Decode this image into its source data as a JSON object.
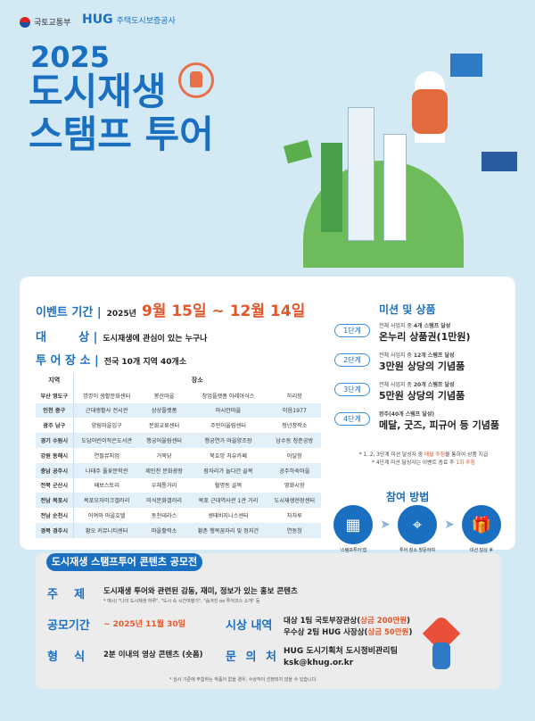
{
  "header": {
    "org1": "국토교통부",
    "org2_brand": "HUG",
    "org2": "주택도시보증공사",
    "year": "2025",
    "title_line1": "도시재생",
    "title_line2": "스탬프 투어"
  },
  "info": {
    "period_label": "이벤트 기간 |",
    "period_year": "2025년",
    "period": "9월 15일 ~ 12월 14일",
    "target_label": "대        상 |",
    "target": "도시재생에 관심이 있는 누구나",
    "place_label": "투 어 장 소 |",
    "place": "전국 10개 지역 40개소"
  },
  "table": {
    "headers": [
      "지역",
      "장소"
    ],
    "rows": [
      [
        "부산 영도구",
        "깡깡이 생활문화센터",
        "봉산마을",
        "창업플랫폼 아레아식스",
        "하리항"
      ],
      [
        "인천 중구",
        "근대생활사 전시관",
        "상상플랫폼",
        "마시안마을",
        "이음1977"
      ],
      [
        "광주 남구",
        "양림마을입구",
        "문화교류센터",
        "주민어울림센터",
        "청년창작소"
      ],
      [
        "경기 수원시",
        "도담어린이작은도서관",
        "행궁어울림센터",
        "행궁연가 마을양조장",
        "남수동 청춘공방"
      ],
      [
        "강원 동해시",
        "연필뮤지엄",
        "거북당",
        "묵호앙 치유카페",
        "어달항"
      ],
      [
        "충남 공주시",
        "나태주 풀꽃문학관",
        "제민천 문화광장",
        "잠자리가 놀다간 골목",
        "공주하숙마을"
      ],
      [
        "전북 군산시",
        "째보스토리",
        "우체통거리",
        "월명동 골목",
        "영화시장"
      ],
      [
        "전남 목포시",
        "목포모자이크갤러리",
        "미식문화갤러리",
        "목포 근대역사관 1관 거리",
        "도시재생현장센터"
      ],
      [
        "전남 순천시",
        "어여와 마을호텔",
        "동천테라스",
        "생태비지니스센터",
        "차차루"
      ],
      [
        "경북 경주시",
        "황오 커뮤니티센터",
        "마을활력소",
        "황촌 행복꿈자리 및 정지간",
        "연동창"
      ]
    ]
  },
  "missions": {
    "title": "미션 및 상품",
    "steps": [
      {
        "label": "1단계",
        "cond_pre": "전체 사업지 중 ",
        "cond_bold": "4개 스탬프 달성",
        "prize": "온누리 상품권(1만원)"
      },
      {
        "label": "2단계",
        "cond_pre": "전체 사업지 중 ",
        "cond_bold": "12개 스탬프 달성",
        "prize": "3만원 상당의 기념품"
      },
      {
        "label": "3단계",
        "cond_pre": "전체 사업지 중 ",
        "cond_bold": "20개 스탬프 달성",
        "prize": "5만원 상당의 기념품"
      },
      {
        "label": "4단계",
        "cond_pre": "",
        "cond_bold": "완주(40개 스탬프 달성)",
        "prize": "메달, 굿즈, 피규어 등 기념품"
      }
    ],
    "note1_pre": "* 1, 2, 3단계 미션 달성자 중 ",
    "note1_hl": "매월 추첨",
    "note1_post": "을 통하여 상품 지급",
    "note2_pre": "* 4단계 미션 달성자는 이벤트 종료 후 ",
    "note2_hl": "1회 추첨"
  },
  "how": {
    "title": "참여 방법",
    "steps": [
      {
        "icon": "qr-code-icon",
        "line1": "'스탬프투어'앱",
        "line2": "설치 및 회원가입"
      },
      {
        "icon": "map-pin-icon",
        "line1": "투어 장소 방문하여",
        "line2": "스탬프 획득"
      },
      {
        "icon": "gift-icon",
        "line1": "미션 달성 후",
        "line2": "앱으로 선물 신청"
      }
    ]
  },
  "contest": {
    "title": "도시재생 스탬프투어 콘텐츠 공모전",
    "topic_label": "주    제",
    "topic": "도시재생 투어와 관련된 감동, 재미, 정보가 있는 홍보 콘텐츠",
    "topic_example": "* 예시) \"나의 도시재생 하루\", \"도시 속 시간여행기\", \"숨겨진 oo 투어코스 소개\" 등",
    "period_label": "공모기간",
    "period": "~ 2025년 11월 30일",
    "award_label": "시상 내역",
    "award1": "대상 1팀 국토부장관상(",
    "award1_hl": "상금 200만원",
    "award2": "우수상 2팀 HUG 사장상(",
    "award2_hl": "상금 50만원",
    "format_label": "형    식",
    "format": "2분 이내의 영상 콘텐츠 (숏폼)",
    "contact_label": "문 의 처",
    "contact1": "HUG 도시기획처 도시정비관리팀",
    "contact2": "ksk@khug.or.kr",
    "footnote": "* 심사 기준에 부합하는 작품이 없을 경우, 수상작이 선정되지 않을 수 있습니다."
  },
  "colors": {
    "primary": "#1a6fc0",
    "accent": "#e2572b",
    "background": "#d3eaf5"
  }
}
